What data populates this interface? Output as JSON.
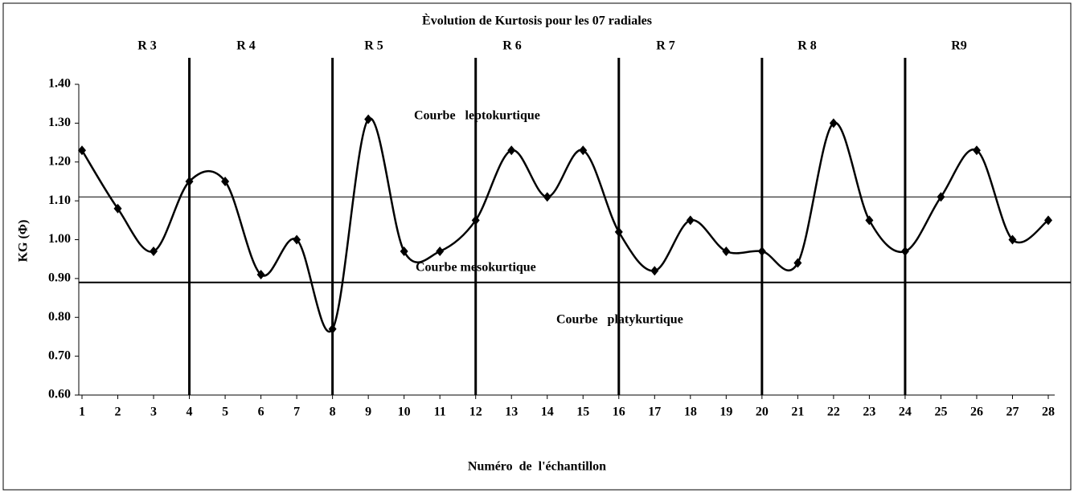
{
  "chart_data": {
    "type": "line",
    "title": "Èvolution de Kurtosis pour les 07 radiales",
    "x_label": "Numéro  de  l'échantillon",
    "y_label": "KG (Φ)",
    "x": [
      1,
      2,
      3,
      4,
      5,
      6,
      7,
      8,
      9,
      10,
      11,
      12,
      13,
      14,
      15,
      16,
      17,
      18,
      19,
      20,
      21,
      22,
      23,
      24,
      25,
      26,
      27,
      28
    ],
    "series": [
      {
        "name": "Kurtosis",
        "color": "#000000",
        "values": [
          1.23,
          1.08,
          0.97,
          1.15,
          1.15,
          0.91,
          1.0,
          0.77,
          1.31,
          0.97,
          0.97,
          1.05,
          1.23,
          1.11,
          1.23,
          1.02,
          0.92,
          1.05,
          0.97,
          0.97,
          0.94,
          1.3,
          1.05,
          0.97,
          1.11,
          1.23,
          1.0,
          1.05
        ]
      }
    ],
    "xlim": [
      1,
      28
    ],
    "ylim": [
      0.6,
      1.4
    ],
    "yticks": [
      {
        "value": 0.6,
        "label": "0.60"
      },
      {
        "value": 0.7,
        "label": "0.70"
      },
      {
        "value": 0.8,
        "label": "0.80"
      },
      {
        "value": 0.9,
        "label": "0.90"
      },
      {
        "value": 1.0,
        "label": "1.00"
      },
      {
        "value": 1.1,
        "label": "1.10"
      },
      {
        "value": 1.2,
        "label": "1.20"
      },
      {
        "value": 1.3,
        "label": "1.30"
      },
      {
        "value": 1.4,
        "label": "1.40"
      }
    ],
    "separators": [
      4,
      8,
      12,
      16,
      20,
      24
    ],
    "regions": [
      "R 3",
      "R 4",
      "R 5",
      "R 6",
      "R 7",
      "R 8",
      "R9"
    ],
    "reference_lines": [
      1.11,
      0.89
    ],
    "annotations": [
      "Courbe   leptokurtique",
      "Courbe mesokurtique",
      "Courbe   platykurtique"
    ]
  }
}
